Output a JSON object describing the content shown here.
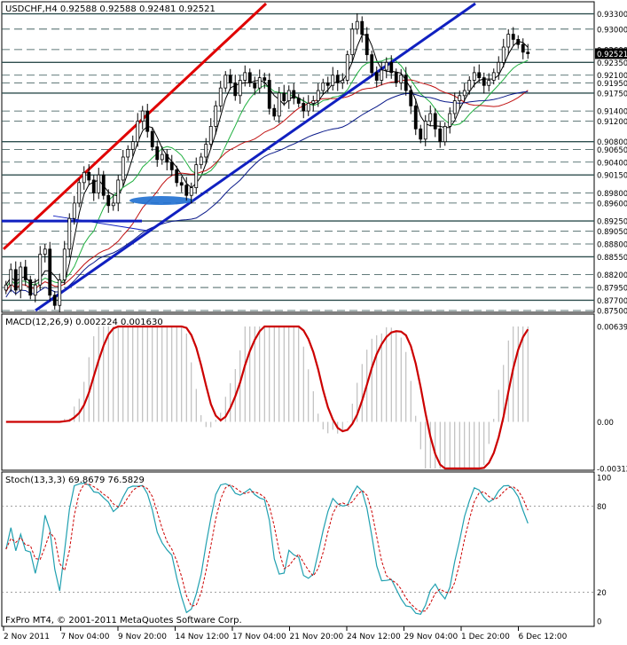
{
  "chart_data": [
    {
      "type": "candlestick",
      "panel": "price",
      "title": "USDCHF,H4",
      "ohlc": {
        "open": "0.92588",
        "high": "0.92588",
        "low": "0.92481",
        "close": "0.92521"
      },
      "y_range": [
        0.875,
        0.935
      ],
      "y_tick_labels": [
        "0.93300",
        "0.93000",
        "0.92600",
        "0.92350",
        "0.92100",
        "0.91950",
        "0.91750",
        "0.91400",
        "0.91200",
        "0.90800",
        "0.90650",
        "0.90400",
        "0.90150",
        "0.89800",
        "0.89600",
        "0.89250",
        "0.89050",
        "0.88800",
        "0.88550",
        "0.88200",
        "0.87950",
        "0.87700",
        "0.87500"
      ],
      "current_price_label": "0.92521",
      "series": [
        {
          "name": "close",
          "values": [
            0.88,
            0.883,
            0.879,
            0.8835,
            0.881,
            0.878,
            0.88,
            0.886,
            0.887,
            0.878,
            0.876,
            0.881,
            0.887,
            0.893,
            0.896,
            0.9,
            0.902,
            0.9005,
            0.898,
            0.9015,
            0.8975,
            0.8955,
            0.896,
            0.9005,
            0.905,
            0.9065,
            0.908,
            0.912,
            0.914,
            0.91,
            0.907,
            0.9045,
            0.9055,
            0.904,
            0.9025,
            0.9,
            0.8995,
            0.8975,
            0.899,
            0.9035,
            0.905,
            0.9075,
            0.911,
            0.915,
            0.9185,
            0.921,
            0.9195,
            0.917,
            0.92,
            0.9215,
            0.9195,
            0.9185,
            0.9205,
            0.92,
            0.9145,
            0.913,
            0.9175,
            0.916,
            0.918,
            0.9165,
            0.9155,
            0.914,
            0.9155,
            0.916,
            0.918,
            0.9195,
            0.919,
            0.921,
            0.9195,
            0.92,
            0.925,
            0.93,
            0.9315,
            0.929,
            0.925,
            0.9215,
            0.92,
            0.922,
            0.9235,
            0.9215,
            0.9195,
            0.921,
            0.918,
            0.915,
            0.9105,
            0.9085,
            0.912,
            0.9135,
            0.9105,
            0.908,
            0.911,
            0.9135,
            0.916,
            0.917,
            0.918,
            0.92,
            0.9215,
            0.9205,
            0.919,
            0.92,
            0.9215,
            0.9235,
            0.9265,
            0.929,
            0.928,
            0.927,
            0.9255,
            0.9252
          ]
        }
      ],
      "indicators": [
        "SMA fast (black)",
        "SMA (green)",
        "SMA (red)",
        "SMA slow (navy)"
      ],
      "annotations": [
        "red rising trend line",
        "blue rising trend line",
        "blue horizontal line",
        "blue ellipse"
      ]
    },
    {
      "type": "histogram+line",
      "panel": "macd",
      "title": "MACD(12,26,9) 0.002224 0.001630",
      "y_range": [
        -0.00312,
        0.00639
      ],
      "y_tick_labels": [
        "0.00639",
        "0.00",
        "-0.00312"
      ],
      "signal_color": "#cc0000",
      "hist_color": "#b0b0b0"
    },
    {
      "type": "line",
      "panel": "stochastic",
      "title": "Stoch(13,3,3) 69.8679 76.5829",
      "y_range": [
        0,
        100
      ],
      "y_tick_labels": [
        "100",
        "80",
        "20",
        "0"
      ],
      "main_color": "#20a0b0",
      "signal_color": "#cc0000"
    }
  ],
  "x_tick_labels": [
    "2 Nov 2011",
    "7 Nov 04:00",
    "9 Nov 20:00",
    "14 Nov 12:00",
    "17 Nov 04:00",
    "21 Nov 20:00",
    "24 Nov 12:00",
    "29 Nov 04:00",
    "1 Dec 20:00",
    "6 Dec 12:00"
  ],
  "footer": "FxPro MT4, © 2001-2011 MetaQuotes Software Corp.",
  "colors": {
    "bull": "#ffffff",
    "bear": "#000000",
    "grid": "#2f4f4f",
    "trend_red": "#e00000",
    "trend_blue": "#1020c0"
  }
}
